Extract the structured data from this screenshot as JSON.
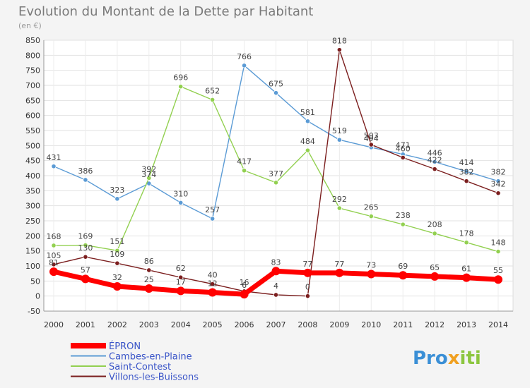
{
  "chart_data": {
    "type": "line",
    "title": "Evolution du Montant de la Dette par Habitant",
    "subtitle": "(en €)",
    "categories": [
      "2000",
      "2001",
      "2002",
      "2003",
      "2004",
      "2005",
      "2006",
      "2007",
      "2008",
      "2009",
      "2010",
      "2011",
      "2012",
      "2013",
      "2014"
    ],
    "ylim": [
      -50,
      850
    ],
    "yticks": [
      -50,
      0,
      50,
      100,
      150,
      200,
      250,
      300,
      350,
      400,
      450,
      500,
      550,
      600,
      650,
      700,
      750,
      800,
      850
    ],
    "grid": true,
    "legend_position": "bottom-left",
    "series": [
      {
        "name": "ÉPRON",
        "color": "#ff0000",
        "values": [
          81,
          57,
          32,
          25,
          17,
          12,
          6,
          83,
          77,
          77,
          73,
          69,
          65,
          61,
          55
        ]
      },
      {
        "name": "Cambes-en-Plaine",
        "color": "#5b9bd5",
        "values": [
          431,
          386,
          323,
          374,
          310,
          257,
          766,
          675,
          581,
          519,
          494,
          471,
          446,
          414,
          382
        ]
      },
      {
        "name": "Saint-Contest",
        "color": "#92d050",
        "values": [
          168,
          169,
          151,
          392,
          696,
          652,
          417,
          377,
          484,
          292,
          265,
          238,
          208,
          178,
          148
        ]
      },
      {
        "name": "Villons-les-Buissons",
        "color": "#7b1e1e",
        "values": [
          105,
          130,
          109,
          86,
          62,
          40,
          16,
          4,
          0,
          818,
          503,
          460,
          422,
          382,
          342
        ]
      }
    ]
  },
  "brand": {
    "part1": "Pro",
    "part2": "x",
    "part3": "iti"
  }
}
